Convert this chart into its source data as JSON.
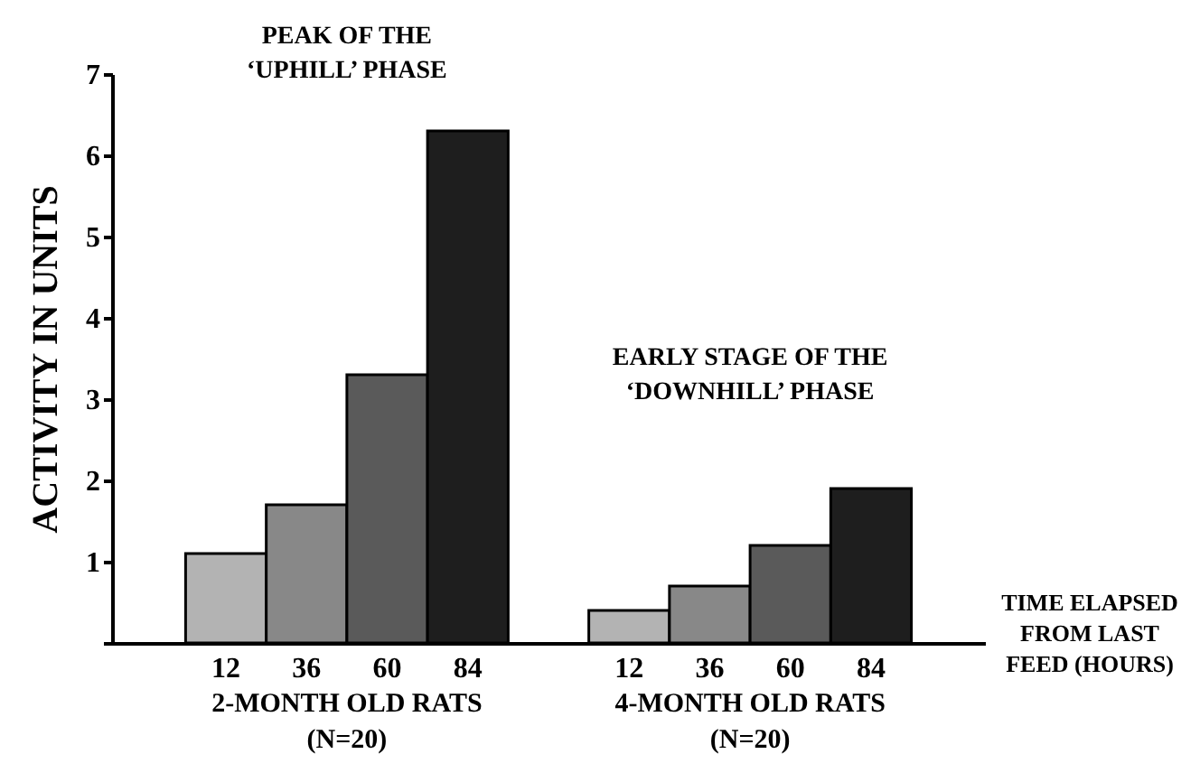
{
  "chart_data": {
    "type": "bar",
    "ylabel": "ACTIVITY IN UNITS",
    "xlabel": "TIME ELAPSED\nFROM LAST\nFEED (HOURS)",
    "categories": [
      "12",
      "36",
      "60",
      "84",
      "12",
      "36",
      "60",
      "84"
    ],
    "values": [
      1.1,
      1.7,
      3.3,
      6.3,
      0.4,
      0.7,
      1.2,
      1.9
    ],
    "colors": [
      "#b3b3b3",
      "#888888",
      "#5a5a5a",
      "#1e1e1e",
      "#b3b3b3",
      "#888888",
      "#5a5a5a",
      "#1e1e1e"
    ],
    "ylim": [
      0,
      7
    ],
    "yticks": [
      {
        "value": 0,
        "label": null
      },
      1,
      2,
      3,
      4,
      5,
      6,
      7
    ],
    "grid": false,
    "annotations": [
      "PEAK OF THE\n‘UPHILL’ PHASE",
      "EARLY STAGE OF THE\n‘DOWNHILL’ PHASE",
      "2-MONTH OLD RATS\n(N=20)",
      "4-MONTH OLD RATS\n(N=20)"
    ]
  }
}
